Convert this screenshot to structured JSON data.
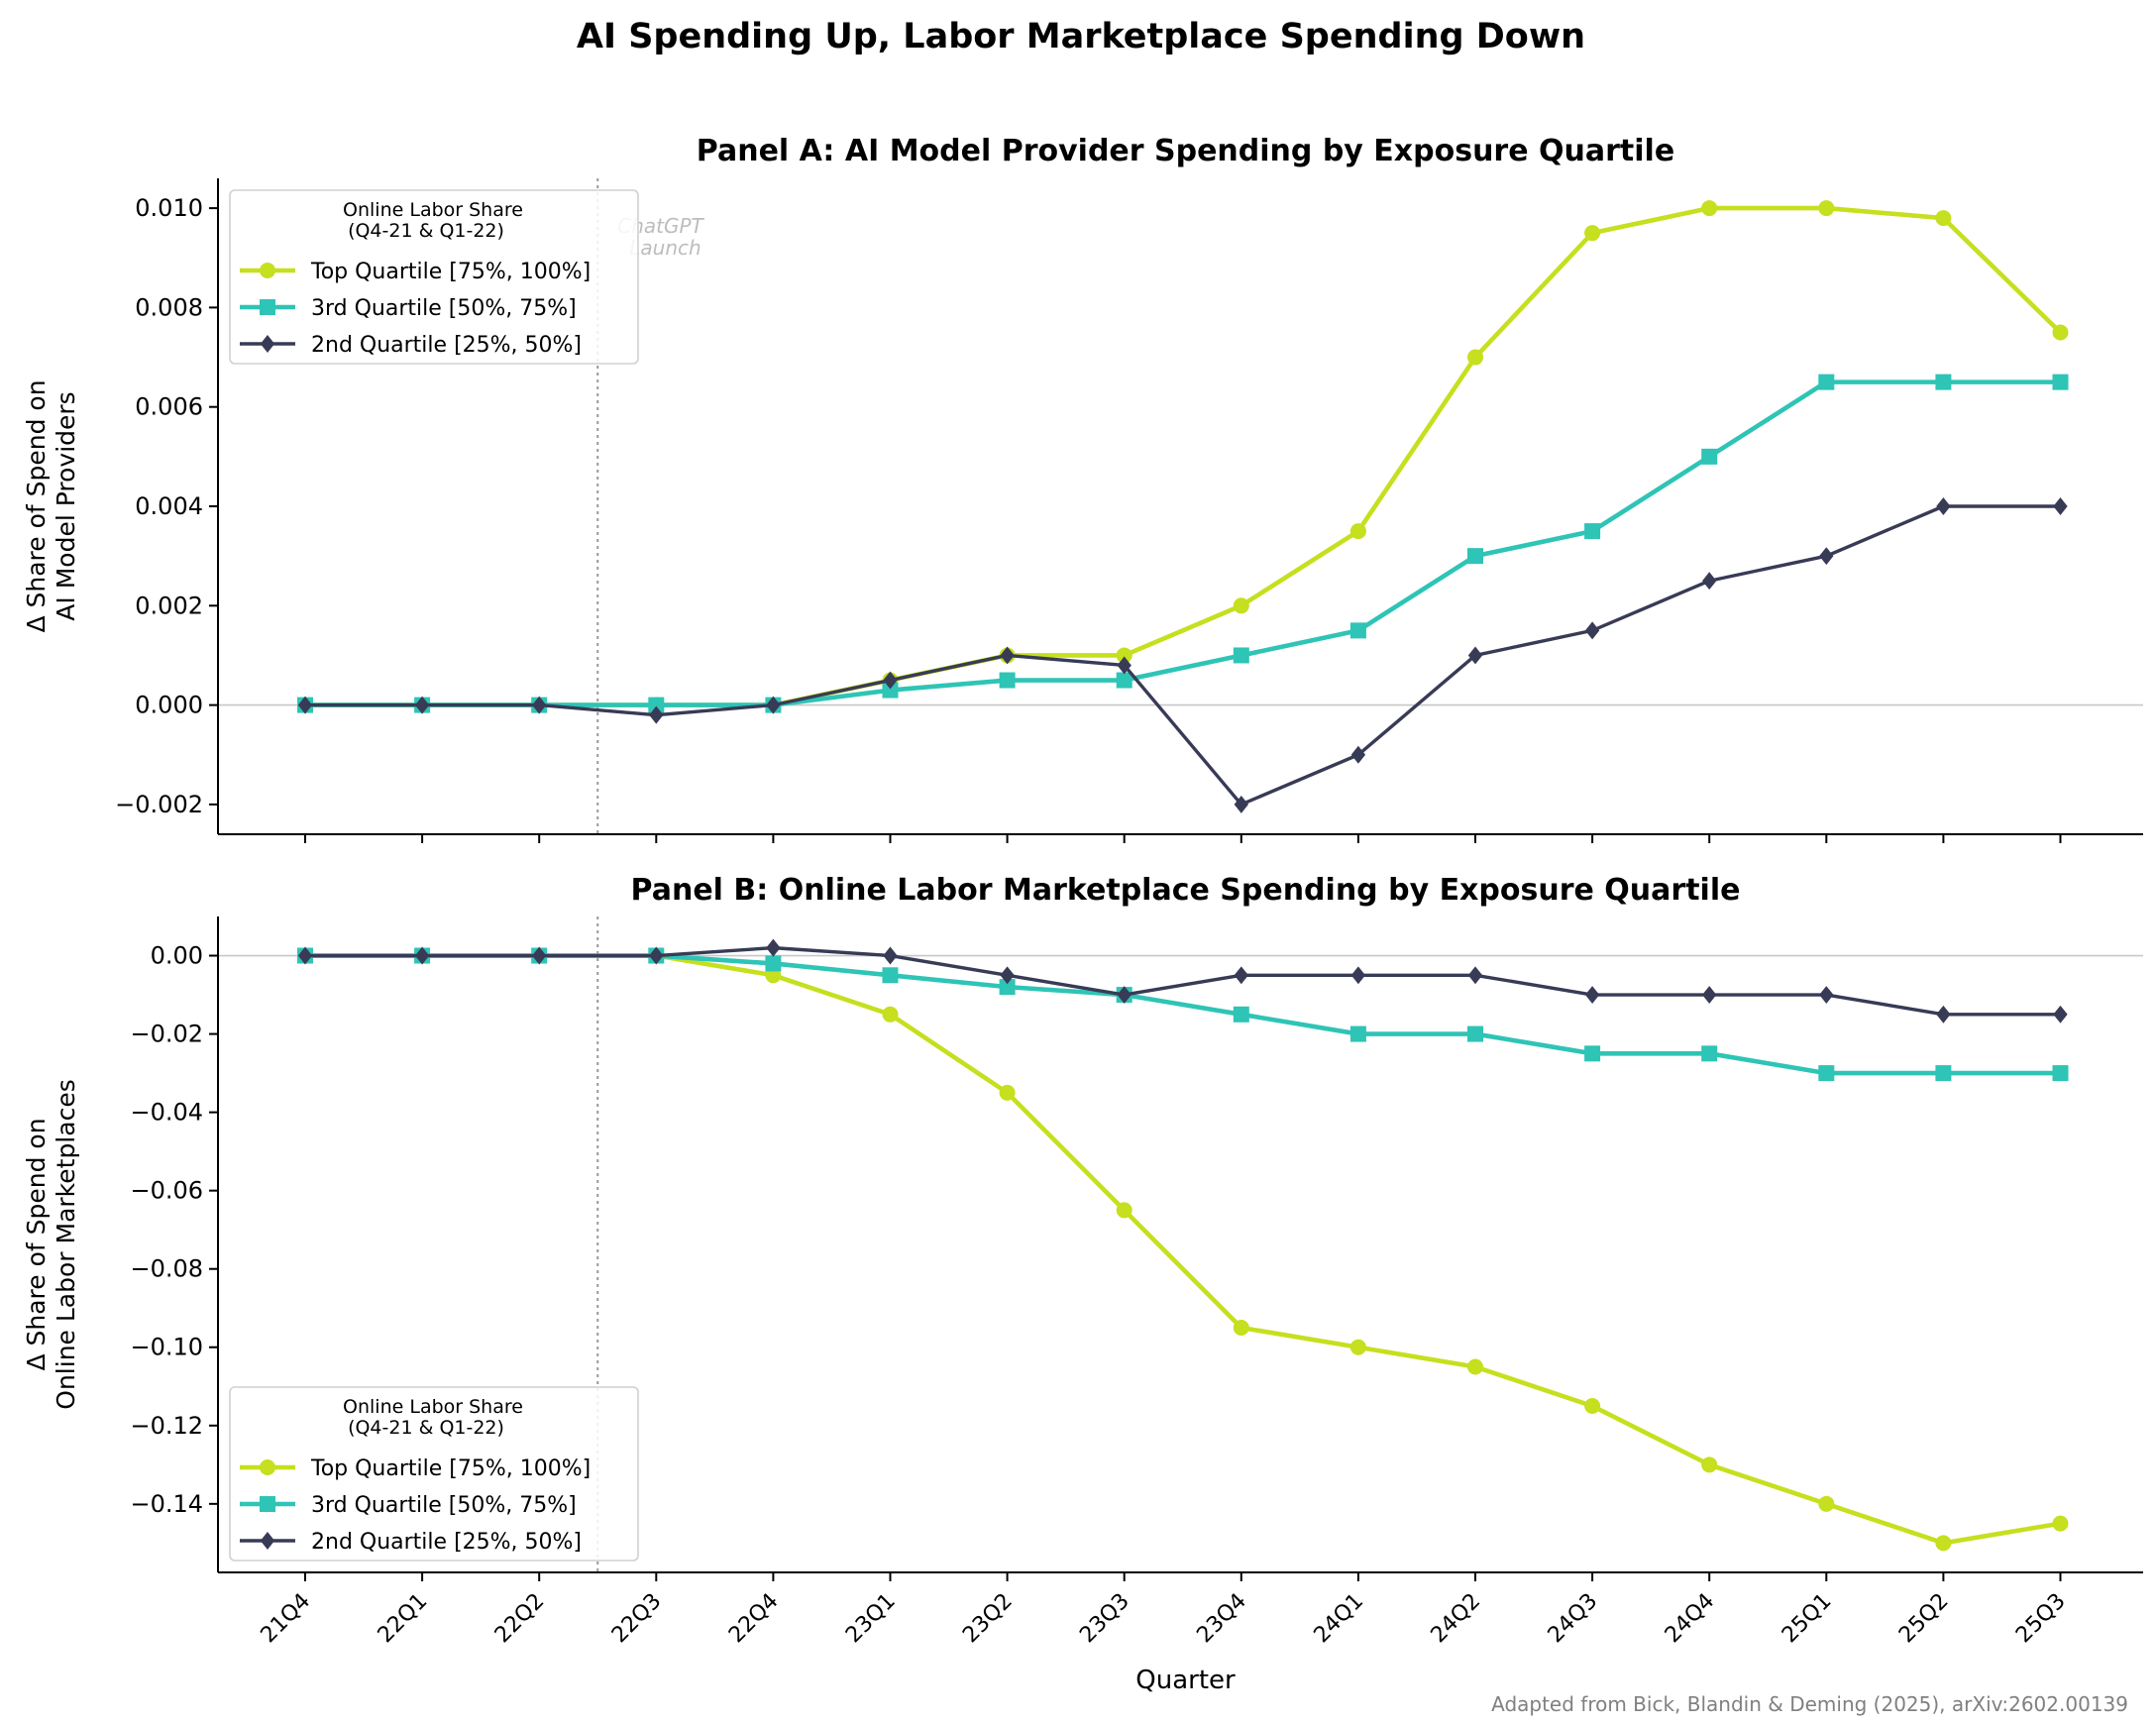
{
  "figure_title": "AI Spending Up, Labor Marketplace Spending Down",
  "source_note": "Adapted from Bick, Blandin & Deming (2025), arXiv:2602.00139",
  "annotation": {
    "line1": "ChatGPT",
    "line2": "Launch"
  },
  "legend_title_line1": "Online Labor Share",
  "legend_title_line2": "(Q4-21 & Q1-22)",
  "series_styles": [
    {
      "name": "Top Quartile [75%, 100%]",
      "color": "#c6df1e",
      "marker": "circle"
    },
    {
      "name": "3rd Quartile [50%, 75%]",
      "color": "#2ec4b6",
      "marker": "square"
    },
    {
      "name": "2nd Quartile [25%, 50%]",
      "color": "#383b56",
      "marker": "diamond"
    }
  ],
  "chart_data": [
    {
      "type": "line",
      "title": "Panel A: AI Model Provider Spending by Exposure Quartile",
      "xlabel": "",
      "ylabel_line1": "Δ Share of Spend on",
      "ylabel_line2": "AI Model Providers",
      "categories": [
        "21Q4",
        "22Q1",
        "22Q2",
        "22Q3",
        "22Q4",
        "23Q1",
        "23Q2",
        "23Q3",
        "23Q4",
        "24Q1",
        "24Q2",
        "24Q3",
        "24Q4",
        "25Q1",
        "25Q2",
        "25Q3"
      ],
      "ylim": [
        -0.0026,
        0.0106
      ],
      "yticks": [
        -0.002,
        0.0,
        0.002,
        0.004,
        0.006,
        0.008,
        0.01
      ],
      "ytick_labels": [
        "−0.002",
        "0.000",
        "0.002",
        "0.004",
        "0.006",
        "0.008",
        "0.010"
      ],
      "legend_position": "upper-left",
      "series": [
        {
          "name": "Top Quartile [75%, 100%]",
          "values": [
            0,
            0,
            0,
            0,
            0,
            0.0005,
            0.001,
            0.001,
            0.002,
            0.0035,
            0.007,
            0.0095,
            0.01,
            0.01,
            0.0098,
            0.0075
          ]
        },
        {
          "name": "3rd Quartile [50%, 75%]",
          "values": [
            0,
            0,
            0,
            0,
            0,
            0.0003,
            0.0005,
            0.0005,
            0.001,
            0.0015,
            0.003,
            0.0035,
            0.005,
            0.0065,
            0.0065,
            0.0065
          ]
        },
        {
          "name": "2nd Quartile [25%, 50%]",
          "values": [
            0,
            0,
            0,
            -0.0002,
            0,
            0.0005,
            0.001,
            0.0008,
            -0.002,
            -0.001,
            0.001,
            0.0015,
            0.0025,
            0.003,
            0.004,
            0.004
          ]
        }
      ]
    },
    {
      "type": "line",
      "title": "Panel B: Online Labor Marketplace Spending by Exposure Quartile",
      "xlabel": "Quarter",
      "ylabel_line1": "Δ Share of Spend on",
      "ylabel_line2": "Online Labor Marketplaces",
      "categories": [
        "21Q4",
        "22Q1",
        "22Q2",
        "22Q3",
        "22Q4",
        "23Q1",
        "23Q2",
        "23Q3",
        "23Q4",
        "24Q1",
        "24Q2",
        "24Q3",
        "24Q4",
        "25Q1",
        "25Q2",
        "25Q3"
      ],
      "ylim": [
        -0.1575,
        0.01
      ],
      "yticks": [
        -0.14,
        -0.12,
        -0.1,
        -0.08,
        -0.06,
        -0.04,
        -0.02,
        0.0
      ],
      "ytick_labels": [
        "−0.14",
        "−0.12",
        "−0.10",
        "−0.08",
        "−0.06",
        "−0.04",
        "−0.02",
        "0.00"
      ],
      "legend_position": "lower-left",
      "series": [
        {
          "name": "Top Quartile [75%, 100%]",
          "values": [
            0,
            0,
            0,
            0,
            -0.005,
            -0.015,
            -0.035,
            -0.065,
            -0.095,
            -0.1,
            -0.105,
            -0.115,
            -0.13,
            -0.14,
            -0.15,
            -0.145
          ]
        },
        {
          "name": "3rd Quartile [50%, 75%]",
          "values": [
            0,
            0,
            0,
            0,
            -0.002,
            -0.005,
            -0.008,
            -0.01,
            -0.015,
            -0.02,
            -0.02,
            -0.025,
            -0.025,
            -0.03,
            -0.03,
            -0.03
          ]
        },
        {
          "name": "2nd Quartile [25%, 50%]",
          "values": [
            0,
            0,
            0,
            0,
            0.002,
            0,
            -0.005,
            -0.01,
            -0.005,
            -0.005,
            -0.005,
            -0.01,
            -0.01,
            -0.01,
            -0.015,
            -0.015
          ]
        }
      ]
    }
  ]
}
